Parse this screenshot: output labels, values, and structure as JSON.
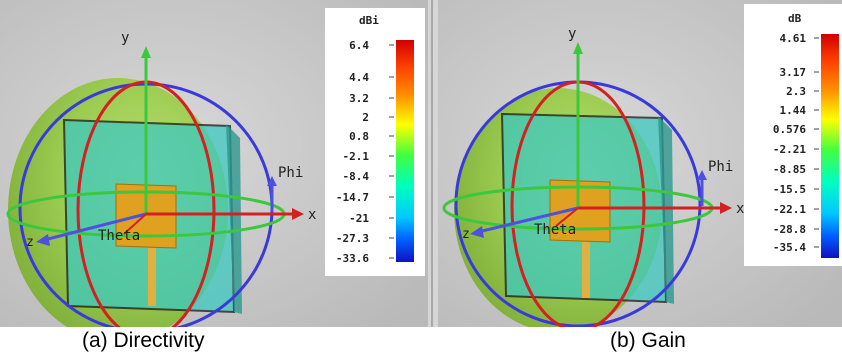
{
  "captions": {
    "a": "(a) Directivity",
    "b": "(b) Gain"
  },
  "axis_labels": {
    "y": "y",
    "x": "x",
    "z": "z",
    "phi": "Phi",
    "theta": "Theta"
  },
  "panel_a": {
    "unit": "dBi",
    "ticks": [
      "6.4",
      "4.4",
      "3.2",
      "2",
      "0.8",
      "-2.1",
      "-8.4",
      "-14.7",
      "-21",
      "-27.3",
      "-33.6"
    ]
  },
  "panel_b": {
    "unit": "dB",
    "ticks": [
      "4.61",
      "3.17",
      "2.3",
      "1.44",
      "0.576",
      "-2.21",
      "-8.85",
      "-15.5",
      "-22.1",
      "-28.8",
      "-35.4"
    ]
  },
  "colors": {
    "background": "#c8c8c8",
    "sphere": "#9ecd4f",
    "circle_blue": "#3a3adc",
    "circle_red": "#d42020",
    "circle_green": "#3cc83c",
    "board": "#3ec8c0",
    "patch": "#e0a020"
  }
}
